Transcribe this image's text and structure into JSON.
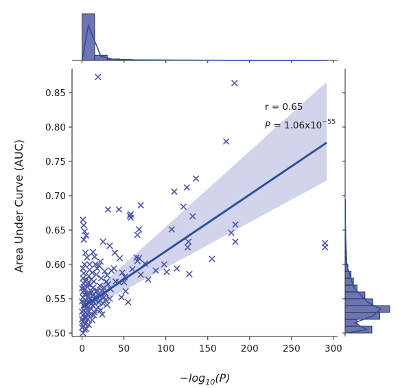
{
  "chart_data": {
    "type": "scatter",
    "xlabel": "−log10(P)",
    "xlabel_parts": {
      "pre": "−log",
      "sub": "10",
      "post": "(P)"
    },
    "ylabel": "Area Under Curve (AUC)",
    "xlim": [
      -12,
      305
    ],
    "ylim": [
      0.495,
      0.885
    ],
    "xticks": [
      0,
      50,
      100,
      150,
      200,
      250,
      300
    ],
    "yticks": [
      0.5,
      0.55,
      0.6,
      0.65,
      0.7,
      0.75,
      0.8,
      0.85
    ],
    "ytick_labels": [
      "0.50",
      "0.55",
      "0.60",
      "0.65",
      "0.70",
      "0.75",
      "0.80",
      "0.85"
    ],
    "grid": false,
    "legend": "none",
    "marker": "x",
    "colors": {
      "points": "#4a56a6",
      "line": "#2f4d9e",
      "band": "#c9cce6",
      "hist_fill": "#6d75b5",
      "hist_edge": "#1c1c1c",
      "kde": "#2f4d9e",
      "axis": "#222222"
    },
    "annotations": {
      "r_text": "r = 0.65",
      "p_prefix": "P",
      "p_value": " = 1.06x10",
      "p_exponent": "−55"
    },
    "regression": {
      "x_range": [
        0,
        292
      ],
      "intercept": 0.537,
      "slope": 0.000823,
      "ci_lower_end": 0.722,
      "ci_upper_end": 0.866,
      "ci_lower_start": 0.529,
      "ci_upper_start": 0.545
    },
    "points": [
      [
        19,
        0.873
      ],
      [
        182,
        0.864
      ],
      [
        172,
        0.779
      ],
      [
        136,
        0.725
      ],
      [
        125,
        0.712
      ],
      [
        110,
        0.706
      ],
      [
        121,
        0.684
      ],
      [
        132,
        0.67
      ],
      [
        70,
        0.686
      ],
      [
        31,
        0.68
      ],
      [
        44,
        0.68
      ],
      [
        58,
        0.673
      ],
      [
        58,
        0.668
      ],
      [
        57,
        0.671
      ],
      [
        68,
        0.651
      ],
      [
        66,
        0.643
      ],
      [
        107,
        0.651
      ],
      [
        178,
        0.646
      ],
      [
        183,
        0.658
      ],
      [
        183,
        0.633
      ],
      [
        127,
        0.633
      ],
      [
        126,
        0.625
      ],
      [
        155,
        0.608
      ],
      [
        65,
        0.61
      ],
      [
        66,
        0.605
      ],
      [
        290,
        0.631
      ],
      [
        290,
        0.625
      ],
      [
        1,
        0.665
      ],
      [
        2,
        0.657
      ],
      [
        3,
        0.648
      ],
      [
        5,
        0.642
      ],
      [
        2,
        0.636
      ],
      [
        25,
        0.633
      ],
      [
        33,
        0.627
      ],
      [
        39,
        0.617
      ],
      [
        45,
        0.609
      ],
      [
        22,
        0.604
      ],
      [
        20,
        0.598
      ],
      [
        35,
        0.591
      ],
      [
        30,
        0.584
      ],
      [
        29,
        0.575
      ],
      [
        38,
        0.594
      ],
      [
        48,
        0.588
      ],
      [
        50,
        0.574
      ],
      [
        51,
        0.582
      ],
      [
        44,
        0.574
      ],
      [
        52,
        0.561
      ],
      [
        55,
        0.545
      ],
      [
        47,
        0.552
      ],
      [
        60,
        0.593
      ],
      [
        70,
        0.585
      ],
      [
        79,
        0.578
      ],
      [
        88,
        0.591
      ],
      [
        101,
        0.589
      ],
      [
        113,
        0.594
      ],
      [
        128,
        0.586
      ],
      [
        98,
        0.6
      ],
      [
        68,
        0.609
      ],
      [
        75,
        0.601
      ],
      [
        13,
        0.618
      ],
      [
        15,
        0.611
      ],
      [
        4,
        0.617
      ],
      [
        6,
        0.61
      ],
      [
        16,
        0.6
      ],
      [
        9,
        0.592
      ],
      [
        17,
        0.585
      ],
      [
        11,
        0.578
      ],
      [
        7,
        0.571
      ],
      [
        13,
        0.566
      ],
      [
        21,
        0.569
      ],
      [
        26,
        0.566
      ],
      [
        19,
        0.556
      ],
      [
        24,
        0.561
      ],
      [
        28,
        0.558
      ],
      [
        31,
        0.571
      ],
      [
        34,
        0.564
      ],
      [
        12,
        0.56
      ],
      [
        3,
        0.6
      ],
      [
        1,
        0.594
      ],
      [
        2,
        0.587
      ],
      [
        1,
        0.58
      ],
      [
        4,
        0.575
      ],
      [
        6,
        0.567
      ],
      [
        3,
        0.563
      ],
      [
        9,
        0.558
      ],
      [
        7,
        0.553
      ],
      [
        15,
        0.549
      ],
      [
        20,
        0.545
      ],
      [
        25,
        0.543
      ],
      [
        30,
        0.541
      ],
      [
        13,
        0.54
      ],
      [
        8,
        0.546
      ],
      [
        5,
        0.541
      ],
      [
        11,
        0.535
      ],
      [
        17,
        0.535
      ],
      [
        22,
        0.533
      ],
      [
        2,
        0.533
      ],
      [
        6,
        0.528
      ],
      [
        10,
        0.527
      ],
      [
        14,
        0.526
      ],
      [
        3,
        0.522
      ],
      [
        7,
        0.52
      ],
      [
        1,
        0.517
      ],
      [
        4,
        0.514
      ],
      [
        2,
        0.51
      ],
      [
        5,
        0.506
      ],
      [
        0,
        0.52
      ],
      [
        1,
        0.526
      ],
      [
        0,
        0.531
      ],
      [
        2,
        0.54
      ],
      [
        0,
        0.546
      ],
      [
        1,
        0.552
      ],
      [
        3,
        0.556
      ],
      [
        2,
        0.567
      ],
      [
        5,
        0.578
      ],
      [
        8,
        0.583
      ],
      [
        12,
        0.588
      ],
      [
        9,
        0.6
      ],
      [
        18,
        0.594
      ],
      [
        14,
        0.575
      ],
      [
        23,
        0.58
      ],
      [
        27,
        0.59
      ],
      [
        10,
        0.57
      ],
      [
        16,
        0.553
      ],
      [
        19,
        0.538
      ],
      [
        24,
        0.527
      ],
      [
        8,
        0.512
      ],
      [
        12,
        0.519
      ],
      [
        4,
        0.53
      ],
      [
        6,
        0.537
      ],
      [
        3,
        0.544
      ],
      [
        9,
        0.549
      ],
      [
        13,
        0.555
      ],
      [
        18,
        0.562
      ],
      [
        21,
        0.548
      ],
      [
        26,
        0.552
      ],
      [
        1,
        0.56
      ],
      [
        0,
        0.565
      ],
      [
        2,
        0.572
      ],
      [
        11,
        0.543
      ],
      [
        15,
        0.53
      ],
      [
        7,
        0.533
      ],
      [
        0,
        0.508
      ],
      [
        1,
        0.5
      ],
      [
        3,
        0.505
      ],
      [
        2,
        0.515
      ],
      [
        5,
        0.523
      ],
      [
        4,
        0.548
      ],
      [
        6,
        0.557
      ],
      [
        10,
        0.562
      ],
      [
        14,
        0.545
      ],
      [
        17,
        0.56
      ],
      [
        22,
        0.554
      ],
      [
        28,
        0.548
      ],
      [
        33,
        0.55
      ],
      [
        40,
        0.575
      ]
    ],
    "top_hist": {
      "bins_x": [
        0,
        15,
        30,
        45,
        60,
        75,
        90,
        105,
        120,
        135,
        150,
        165,
        180,
        195,
        210,
        225,
        240,
        255,
        270,
        285
      ],
      "counts": [
        700,
        80,
        22,
        14,
        10,
        9,
        8,
        6,
        5,
        4,
        4,
        3,
        3,
        2,
        2,
        2,
        2,
        2,
        2,
        2
      ]
    },
    "right_hist": {
      "bins_y": [
        0.5,
        0.51,
        0.52,
        0.53,
        0.54,
        0.55,
        0.56,
        0.57,
        0.58,
        0.59,
        0.6,
        0.61,
        0.62,
        0.63,
        0.64,
        0.65,
        0.66,
        0.67,
        0.68,
        0.69,
        0.7
      ],
      "counts": [
        135,
        60,
        175,
        225,
        140,
        100,
        60,
        42,
        30,
        14,
        9,
        7,
        5,
        4,
        3,
        2,
        1,
        1,
        1,
        1
      ]
    }
  }
}
